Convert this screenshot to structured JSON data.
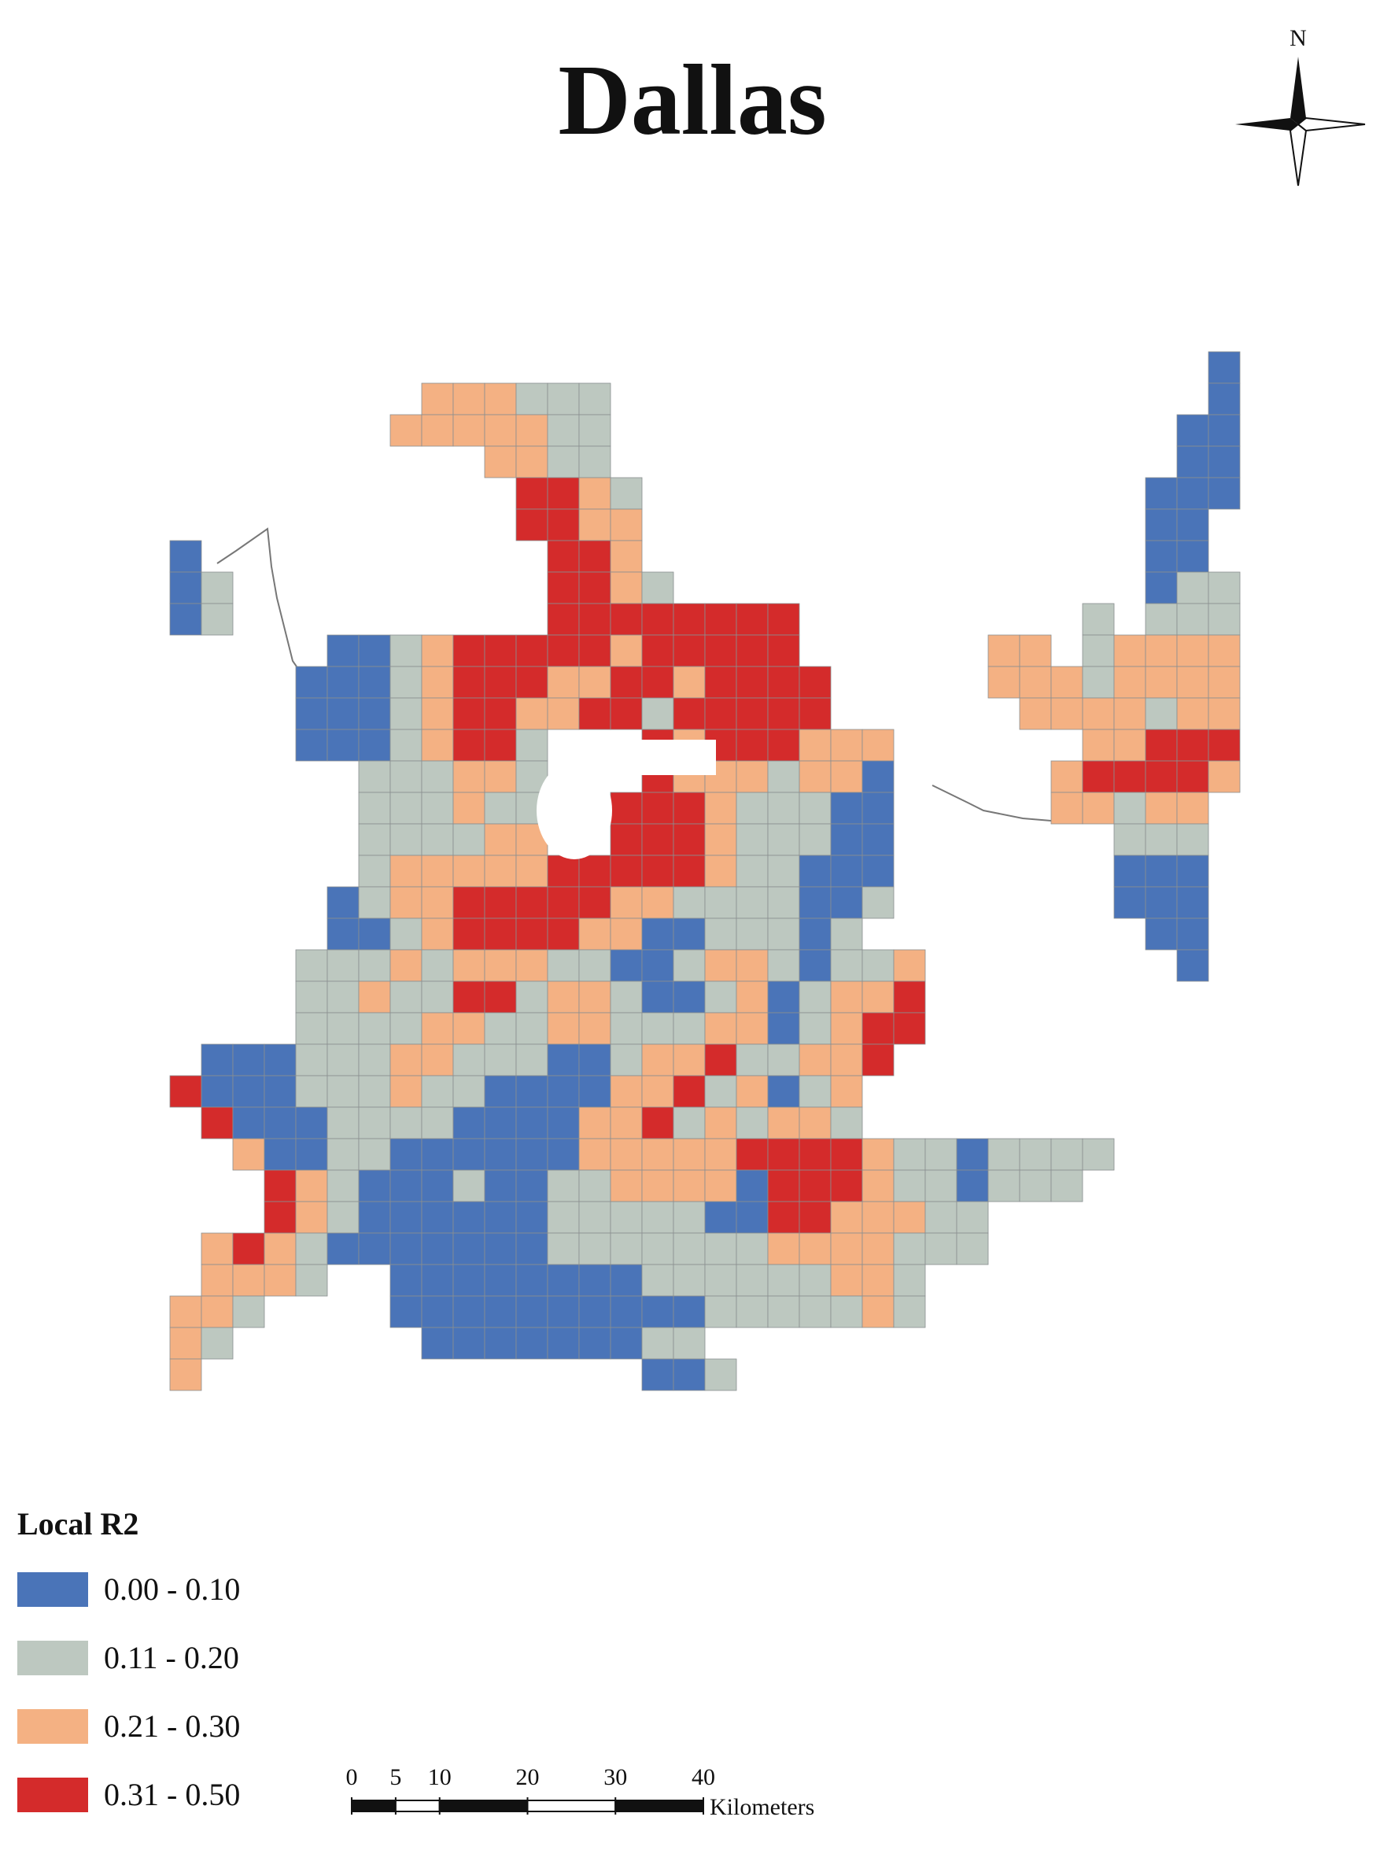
{
  "title": "Dallas",
  "north_arrow": {
    "label": "N"
  },
  "legend": {
    "title": "Local R2",
    "items": [
      {
        "label": "0.00 - 0.10",
        "color": "#4a74b8"
      },
      {
        "label": "0.11 - 0.20",
        "color": "#bdc8c0"
      },
      {
        "label": "0.21 - 0.30",
        "color": "#f4b183"
      },
      {
        "label": "0.31 - 0.50",
        "color": "#d42b2b"
      }
    ]
  },
  "scale_bar": {
    "ticks": [
      0,
      5,
      10,
      20,
      30,
      40
    ],
    "unit": "Kilometers"
  }
}
